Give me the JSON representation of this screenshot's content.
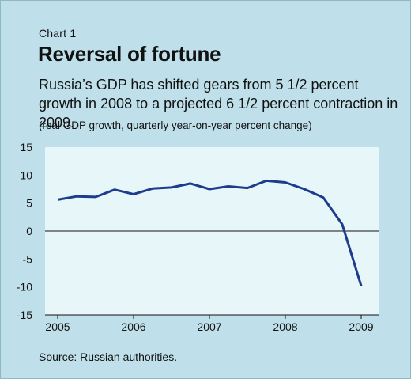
{
  "header": {
    "label": "Chart 1",
    "title": "Reversal of fortune",
    "subtitle": "Russia’s GDP has shifted gears from 5 1/2 percent growth in 2008 to a projected 6 1/2 percent contraction in 2009.",
    "note": "(real GDP growth, quarterly year-on-year percent change)"
  },
  "source": "Source: Russian authorities.",
  "colors": {
    "background": "#bfe0ea",
    "plot_area": "#e6f6f9",
    "line": "#1e3c8c"
  },
  "chart_data": {
    "type": "line",
    "title": "Reversal of fortune",
    "xlabel": "",
    "ylabel": "",
    "x_tick_labels": [
      "2005",
      "2006",
      "2007",
      "2008",
      "2009"
    ],
    "y_tick_labels": [
      "15",
      "10",
      "5",
      "0",
      "-5",
      "-10",
      "-15"
    ],
    "ylim": [
      -15,
      15
    ],
    "grid": false,
    "series": [
      {
        "x": [
          "2005Q1",
          "2005Q2",
          "2005Q3",
          "2005Q4",
          "2006Q1",
          "2006Q2",
          "2006Q3",
          "2006Q4",
          "2007Q1",
          "2007Q2",
          "2007Q3",
          "2007Q4",
          "2008Q1",
          "2008Q2",
          "2008Q3",
          "2008Q4",
          "2009Q1"
        ],
        "values": [
          5.6,
          6.2,
          6.1,
          7.4,
          6.6,
          7.6,
          7.8,
          8.5,
          7.5,
          8.0,
          7.7,
          9.0,
          8.7,
          7.5,
          6.0,
          1.2,
          -9.8
        ]
      }
    ]
  }
}
